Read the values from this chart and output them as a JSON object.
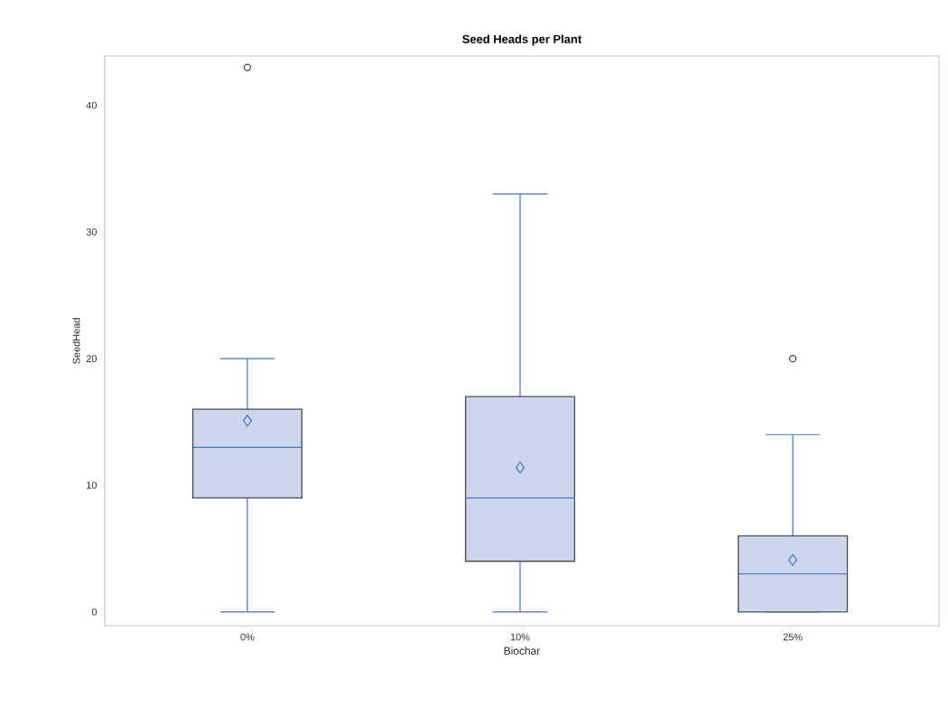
{
  "chart_data": {
    "type": "box",
    "title": "Seed Heads per Plant",
    "xlabel": "Biochar",
    "ylabel": "SeedHead",
    "categories": [
      "0%",
      "10%",
      "25%"
    ],
    "series": [
      {
        "color": "#ccd7ee",
        "boxes": [
          {
            "low": 0,
            "q1": 9,
            "median": 13,
            "q3": 16,
            "high": 20,
            "mean": 15.1,
            "outliers": [
              43
            ]
          },
          {
            "low": 0,
            "q1": 4,
            "median": 9,
            "q3": 17,
            "high": 33,
            "mean": 11.4
          },
          {
            "low": 0,
            "q1": 0,
            "median": 3,
            "q3": 6,
            "high": 14,
            "mean": 4.1,
            "outliers": [
              20
            ]
          }
        ]
      }
    ],
    "ylim": [
      -1.1,
      43.9
    ],
    "yticks": [
      0,
      10,
      20,
      30,
      40
    ],
    "grid": false
  }
}
